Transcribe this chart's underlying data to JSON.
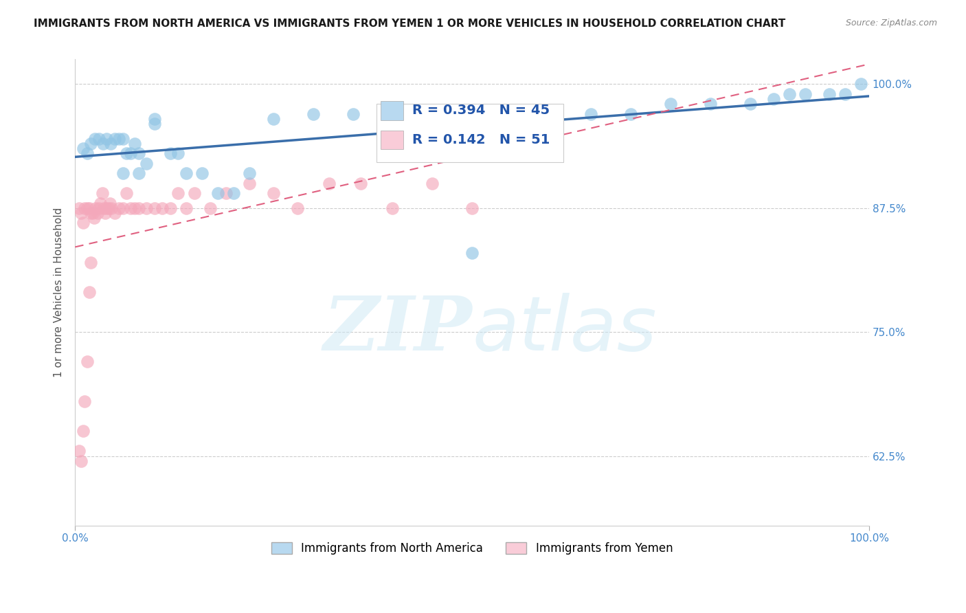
{
  "title": "IMMIGRANTS FROM NORTH AMERICA VS IMMIGRANTS FROM YEMEN 1 OR MORE VEHICLES IN HOUSEHOLD CORRELATION CHART",
  "source": "Source: ZipAtlas.com",
  "ylabel": "1 or more Vehicles in Household",
  "legend_labels": [
    "Immigrants from North America",
    "Immigrants from Yemen"
  ],
  "R_north_america": 0.394,
  "N_north_america": 45,
  "R_yemen": 0.142,
  "N_yemen": 51,
  "xlim": [
    0,
    1.0
  ],
  "ylim": [
    0.555,
    1.025
  ],
  "yticks": [
    0.625,
    0.75,
    0.875,
    1.0
  ],
  "ytick_labels": [
    "62.5%",
    "75.0%",
    "87.5%",
    "100.0%"
  ],
  "xtick_labels": [
    "0.0%",
    "100.0%"
  ],
  "color_north_america": "#90c4e4",
  "color_yemen": "#f4a8bb",
  "trendline_color_north_america": "#3a6eaa",
  "trendline_color_yemen": "#e06080",
  "north_america_x": [
    0.01,
    0.015,
    0.02,
    0.025,
    0.03,
    0.035,
    0.04,
    0.045,
    0.05,
    0.055,
    0.06,
    0.065,
    0.07,
    0.075,
    0.08,
    0.09,
    0.1,
    0.12,
    0.13,
    0.14,
    0.16,
    0.18,
    0.22,
    0.25,
    0.3,
    0.35,
    0.4,
    0.5,
    0.55,
    0.6,
    0.65,
    0.7,
    0.75,
    0.8,
    0.85,
    0.88,
    0.9,
    0.92,
    0.95,
    0.97,
    0.99,
    0.2,
    0.1,
    0.08,
    0.06
  ],
  "north_america_y": [
    0.935,
    0.93,
    0.94,
    0.945,
    0.945,
    0.94,
    0.945,
    0.94,
    0.945,
    0.945,
    0.945,
    0.93,
    0.93,
    0.94,
    0.93,
    0.92,
    0.96,
    0.93,
    0.93,
    0.91,
    0.91,
    0.89,
    0.91,
    0.965,
    0.97,
    0.97,
    0.97,
    0.83,
    0.97,
    0.97,
    0.97,
    0.97,
    0.98,
    0.98,
    0.98,
    0.985,
    0.99,
    0.99,
    0.99,
    0.99,
    1.0,
    0.89,
    0.965,
    0.91,
    0.91
  ],
  "yemen_x": [
    0.005,
    0.008,
    0.01,
    0.012,
    0.015,
    0.018,
    0.02,
    0.022,
    0.024,
    0.026,
    0.028,
    0.03,
    0.032,
    0.034,
    0.036,
    0.038,
    0.04,
    0.042,
    0.044,
    0.046,
    0.05,
    0.055,
    0.06,
    0.065,
    0.07,
    0.075,
    0.08,
    0.09,
    0.1,
    0.11,
    0.12,
    0.13,
    0.14,
    0.15,
    0.17,
    0.19,
    0.22,
    0.25,
    0.28,
    0.32,
    0.36,
    0.4,
    0.45,
    0.5,
    0.005,
    0.008,
    0.01,
    0.012,
    0.015,
    0.018,
    0.02
  ],
  "yemen_y": [
    0.875,
    0.87,
    0.86,
    0.875,
    0.875,
    0.875,
    0.87,
    0.87,
    0.865,
    0.875,
    0.87,
    0.875,
    0.88,
    0.89,
    0.875,
    0.87,
    0.875,
    0.875,
    0.88,
    0.875,
    0.87,
    0.875,
    0.875,
    0.89,
    0.875,
    0.875,
    0.875,
    0.875,
    0.875,
    0.875,
    0.875,
    0.89,
    0.875,
    0.89,
    0.875,
    0.89,
    0.9,
    0.89,
    0.875,
    0.9,
    0.9,
    0.875,
    0.9,
    0.875,
    0.63,
    0.62,
    0.65,
    0.68,
    0.72,
    0.79,
    0.82
  ],
  "watermark_zip": "ZIP",
  "watermark_atlas": "atlas",
  "background_color": "#ffffff",
  "grid_color": "#cccccc",
  "title_fontsize": 11,
  "axis_label_fontsize": 11,
  "tick_fontsize": 11,
  "legend_box_color_north_america": "#b8d9f0",
  "legend_box_color_yemen": "#f9ccd8"
}
